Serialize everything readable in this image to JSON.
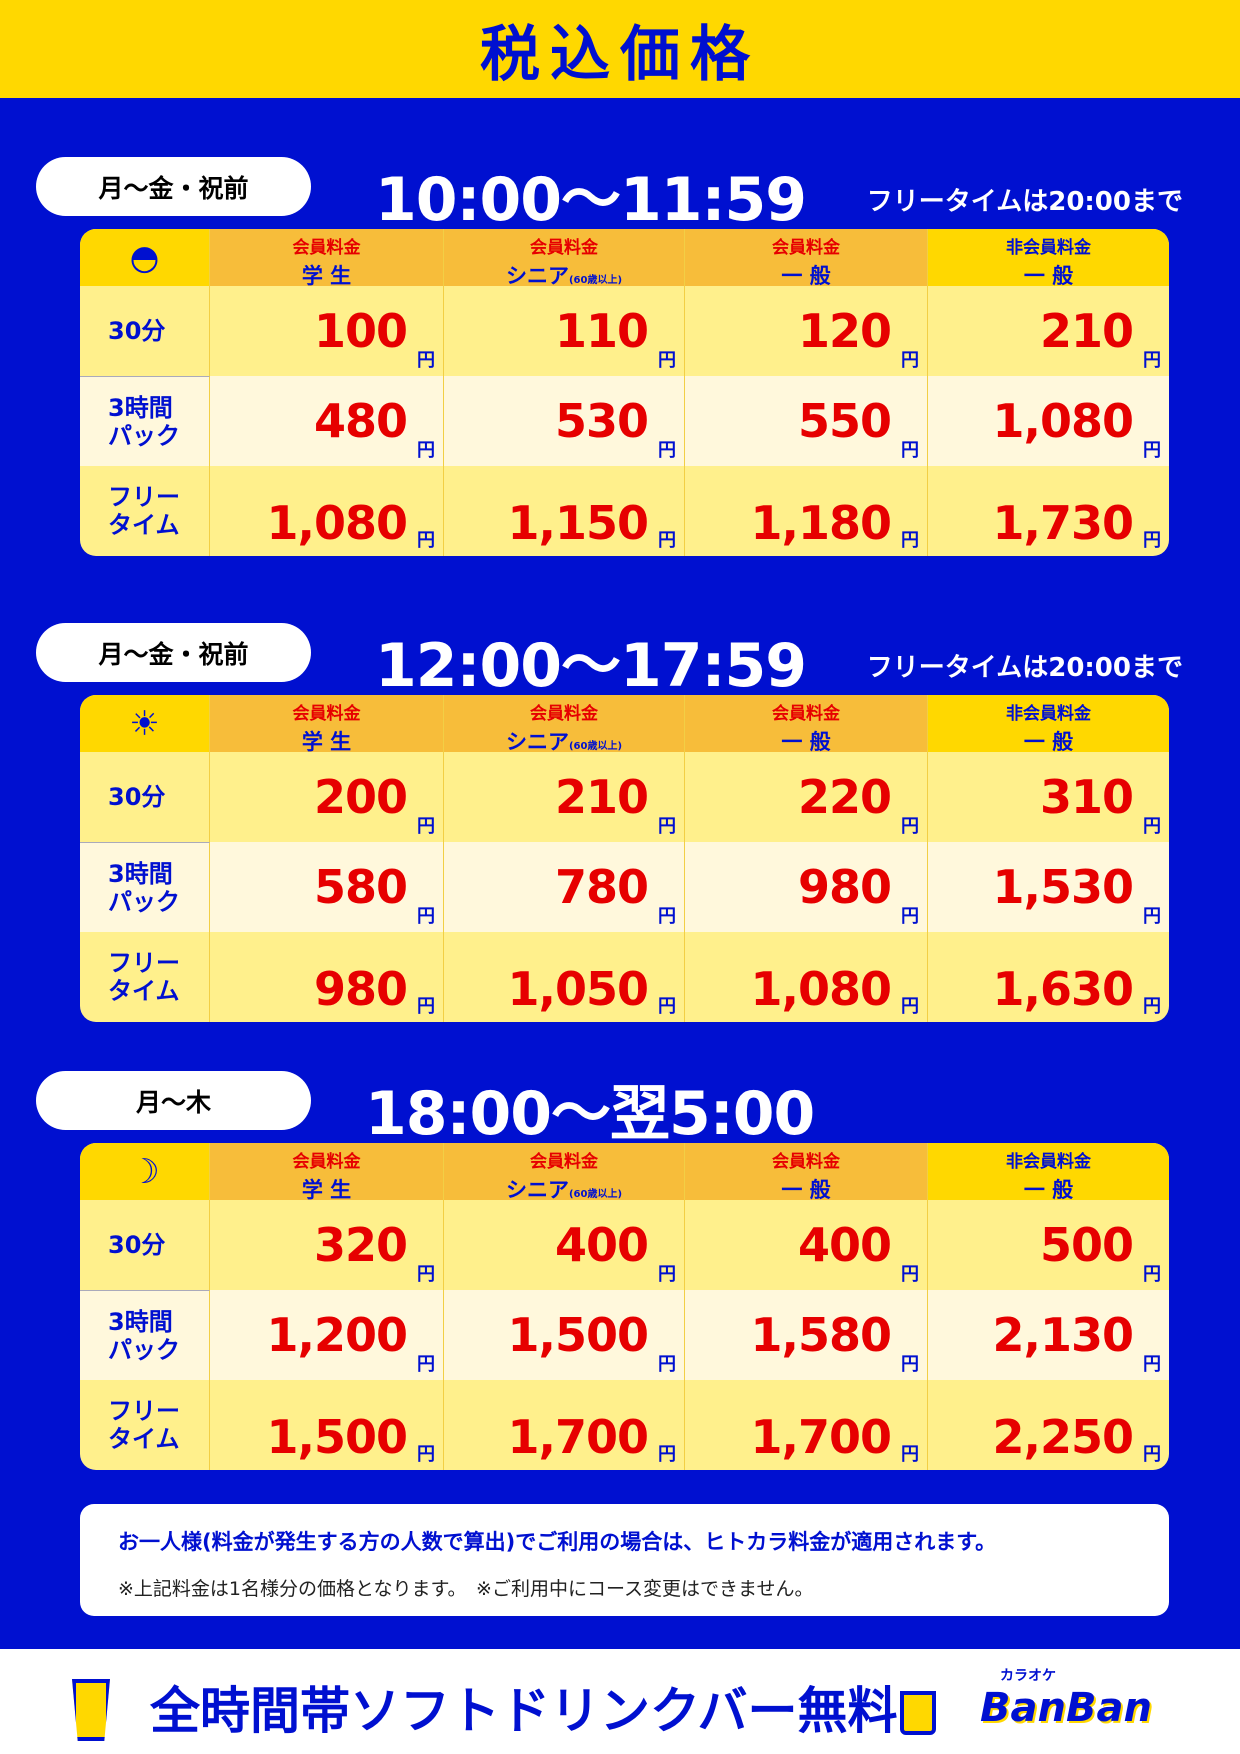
{
  "title": "税込価格",
  "header_labels": {
    "member": "会員料金",
    "nonmember": "非会員料金",
    "student": "学 生",
    "senior": "シニア",
    "senior_note": "(60歳以上)",
    "general": "一 般"
  },
  "yen": "円",
  "row_labels": [
    "30分",
    "3時間\nパック",
    "フリー\nタイム"
  ],
  "sections": [
    {
      "days": "月〜金・祝前",
      "time": "10:00〜11:59",
      "free_note": "フリータイムは20:00まで",
      "icon": "sunrise-icon",
      "prices": [
        [
          "100",
          "110",
          "120",
          "210"
        ],
        [
          "480",
          "530",
          "550",
          "1,080"
        ],
        [
          "1,080",
          "1,150",
          "1,180",
          "1,730"
        ]
      ]
    },
    {
      "days": "月〜金・祝前",
      "time": "12:00〜17:59",
      "free_note": "フリータイムは20:00まで",
      "icon": "sun-icon",
      "prices": [
        [
          "200",
          "210",
          "220",
          "310"
        ],
        [
          "580",
          "780",
          "980",
          "1,530"
        ],
        [
          "980",
          "1,050",
          "1,080",
          "1,630"
        ]
      ]
    },
    {
      "days": "月〜木",
      "time": "18:00〜翌5:00",
      "free_note": null,
      "icon": "moon-icon",
      "prices": [
        [
          "320",
          "400",
          "400",
          "500"
        ],
        [
          "1,200",
          "1,500",
          "1,580",
          "2,130"
        ],
        [
          "1,500",
          "1,700",
          "1,700",
          "2,250"
        ]
      ]
    }
  ],
  "note": {
    "line1": "お一人様(料金が発生する方の人数で算出)でご利用の場合は、ヒトカラ料金が適用されます。",
    "line2": "※上記料金は1名様分の価格となります。　※ご利用中にコース変更はできません。"
  },
  "footer": {
    "banner": "全時間帯ソフトドリンクバー無料",
    "logo_small": "カラオケ",
    "logo": "BanBan"
  },
  "colors": {
    "blue": "#0010d0",
    "yellow": "#ffd800",
    "red": "#e60000"
  }
}
